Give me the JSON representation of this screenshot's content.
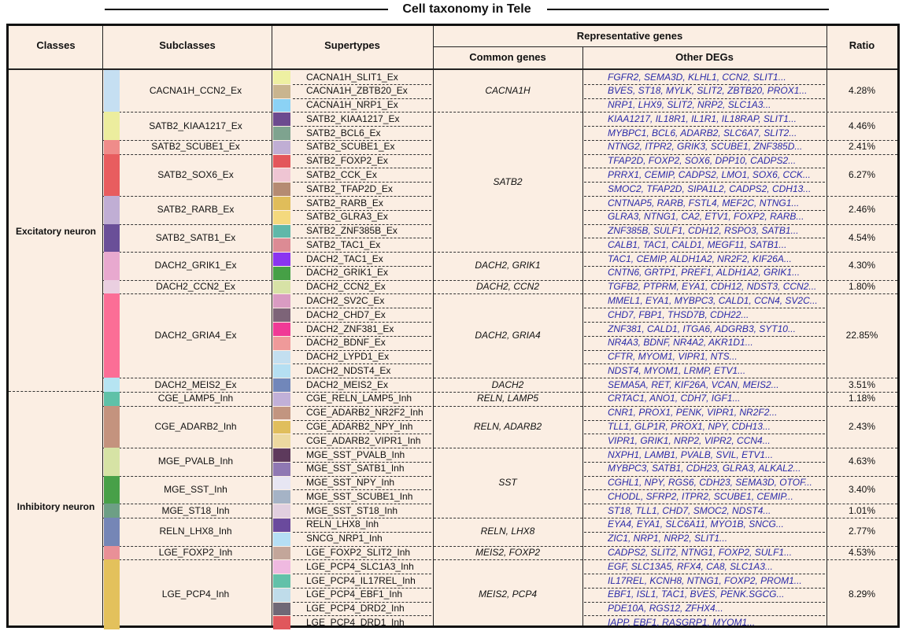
{
  "title": "Cell taxonomy in Tele",
  "headers": {
    "classes": "Classes",
    "subclasses": "Subclasses",
    "supertypes": "Supertypes",
    "rep_genes": "Representative genes",
    "common_genes": "Common genes",
    "other_degs": "Other DEGs",
    "ratio": "Ratio"
  },
  "classes": [
    {
      "name": "Excitatory neuron"
    },
    {
      "name": "Inhibitory neuron"
    }
  ],
  "subclasses": [
    {
      "name": "CACNA1H_CCN2_Ex",
      "color": "#c5dff2",
      "ratio": "4.28%"
    },
    {
      "name": "SATB2_KIAA1217_Ex",
      "color": "#eced9e",
      "ratio": "4.46%"
    },
    {
      "name": "SATB2_SCUBE1_Ex",
      "color": "#ef8c8a",
      "ratio": "2.41%"
    },
    {
      "name": "SATB2_SOX6_Ex",
      "color": "#e85d5f",
      "ratio": "6.27%"
    },
    {
      "name": "SATB2_RARB_Ex",
      "color": "#c0aed4",
      "ratio": "2.46%"
    },
    {
      "name": "SATB2_SATB1_Ex",
      "color": "#6a4f98",
      "ratio": "4.54%"
    },
    {
      "name": "DACH2_GRIK1_Ex",
      "color": "#e8a9cf",
      "ratio": "4.30%"
    },
    {
      "name": "DACH2_CCN2_Ex",
      "color": "#eacfe0",
      "ratio": "1.80%"
    },
    {
      "name": "DACH2_GRIA4_Ex",
      "color": "#fb6e96",
      "ratio": "22.85%"
    },
    {
      "name": "DACH2_MEIS2_Ex",
      "color": "#b6e4f2",
      "ratio": "3.51%"
    },
    {
      "name": "CGE_LAMP5_Inh",
      "color": "#5fc1a8",
      "ratio": "1.18%"
    },
    {
      "name": "CGE_ADARB2_Inh",
      "color": "#c4937e",
      "ratio": "2.43%"
    },
    {
      "name": "MGE_PVALB_Inh",
      "color": "#d6e3a5",
      "ratio": "4.63%"
    },
    {
      "name": "MGE_SST_Inh",
      "color": "#48a048",
      "ratio": "3.40%"
    },
    {
      "name": "MGE_ST18_Inh",
      "color": "#6d9f85",
      "ratio": "1.01%"
    },
    {
      "name": "RELN_LHX8_Inh",
      "color": "#7586b6",
      "ratio": "2.77%"
    },
    {
      "name": "LGE_FOXP2_Inh",
      "color": "#e99097",
      "ratio": "4.53%"
    },
    {
      "name": "LGE_PCP4_Inh",
      "color": "#e3c15c",
      "ratio": "8.29%"
    }
  ],
  "supertypes": [
    {
      "name": "CACNA1H_SLIT1_Ex",
      "color": "#eef0a2",
      "degs": "FGFR2, SEMA3D, KLHL1, CCN2, SLIT1..."
    },
    {
      "name": "CACNA1H_ZBTB20_Ex",
      "color": "#c9b58f",
      "degs": "BVES, ST18, MYLK, SLIT2, ZBTB20, PROX1..."
    },
    {
      "name": "CACNA1H_NRP1_Ex",
      "color": "#8bd2f5",
      "degs": "NRP1, LHX9, SLIT2, NRP2, SLC1A3..."
    },
    {
      "name": "SATB2_KIAA1217_Ex",
      "color": "#6c4a8f",
      "degs": "KIAA1217, IL18R1, IL1R1, IL18RAP, SLIT1..."
    },
    {
      "name": "SATB2_BCL6_Ex",
      "color": "#7ea38f",
      "degs": "MYBPC1, BCL6, ADARB2, SLC6A7, SLIT2..."
    },
    {
      "name": "SATB2_SCUBE1_Ex",
      "color": "#c0aed4",
      "degs": "NTNG2, ITPR2, GRIK3, SCUBE1, ZNF385D..."
    },
    {
      "name": "SATB2_FOXP2_Ex",
      "color": "#e3565b",
      "degs": "TFAP2D, FOXP2, SOX6, DPP10, CADPS2..."
    },
    {
      "name": "SATB2_CCK_Ex",
      "color": "#efc5d3",
      "degs": "PRRX1, CEMIP, CADPS2, LMO1, SOX6, CCK..."
    },
    {
      "name": "SATB2_TFAP2D_Ex",
      "color": "#b58b72",
      "degs": "SMOC2, TFAP2D, SIPA1L2, CADPS2, CDH13..."
    },
    {
      "name": "SATB2_RARB_Ex",
      "color": "#e0bd5a",
      "degs": "CNTNAP5, RARB, FSTL4, MEF2C, NTNG1..."
    },
    {
      "name": "SATB2_GLRA3_Ex",
      "color": "#f4d97e",
      "degs": "GLRA3, NTNG1, CA2, ETV1, FOXP2, RARB..."
    },
    {
      "name": "SATB2_ZNF385B_Ex",
      "color": "#5fb8a9",
      "degs": "ZNF385B, SULF1, CDH12, RSPO3, SATB1..."
    },
    {
      "name": "SATB2_TAC1_Ex",
      "color": "#dc8b94",
      "degs": "CALB1, TAC1, CALD1, MEGF11, SATB1..."
    },
    {
      "name": "DACH2_TAC1_Ex",
      "color": "#8a34f0",
      "degs": "TAC1, CEMIP, ALDH1A2, NR2F2, KIF26A..."
    },
    {
      "name": "DACH2_GRIK1_Ex",
      "color": "#46a046",
      "degs": "CNTN6, GRTP1, PREF1, ALDH1A2, GRIK1..."
    },
    {
      "name": "DACH2_CCN2_Ex",
      "color": "#d7e2a6",
      "degs": "TGFB2, PTPRM, EYA1, CDH12, NDST3, CCN2..."
    },
    {
      "name": "DACH2_SV2C_Ex",
      "color": "#d99bc2",
      "degs": "MMEL1, EYA1, MYBPC3, CALD1, CCN4, SV2C..."
    },
    {
      "name": "DACH2_CHD7_Ex",
      "color": "#7d6478",
      "degs": "CHD7, FBP1, THSD7B, CDH22..."
    },
    {
      "name": "DACH2_ZNF381_Ex",
      "color": "#f03a96",
      "degs": "ZNF381, CALD1, ITGA6, ADGRB3, SYT10..."
    },
    {
      "name": "DACH2_BDNF_Ex",
      "color": "#ef9a9a",
      "degs": "NR4A3, BDNF, NR4A2, AKR1D1..."
    },
    {
      "name": "DACH2_LYPD1_Ex",
      "color": "#c3dff0",
      "degs": "CFTR, MYOM1, VIPR1, NTS..."
    },
    {
      "name": "DACH2_NDST4_Ex",
      "color": "#b5dff2",
      "degs": "NDST4, MYOM1, LRMP, ETV1..."
    },
    {
      "name": "DACH2_MEIS2_Ex",
      "color": "#7187ba",
      "degs": "SEMA5A, RET, KIF26A, VCAN, MEIS2..."
    },
    {
      "name": "CGE_RELN_LAMP5_Inh",
      "color": "#c1b0d8",
      "degs": "CRTAC1, ANO1, CDH7, IGF1..."
    },
    {
      "name": "CGE_ADARB2_NR2F2_Inh",
      "color": "#c29580",
      "degs": "CNR1, PROX1, PENK, VIPR1, NR2F2..."
    },
    {
      "name": "CGE_ADARB2_NPY_Inh",
      "color": "#e0be5c",
      "degs": "TLL1, GLP1R, PROX1, NPY, CDH13..."
    },
    {
      "name": "CGE_ADARB2_VIPR1_Inh",
      "color": "#ecd9a0",
      "degs": "VIPR1, GRIK1, NRP2, VIPR2, CCN4..."
    },
    {
      "name": "MGE_SST_PVALB_Inh",
      "color": "#5d3a5c",
      "degs": "NXPH1, LAMB1, PVALB, SVIL, ETV1..."
    },
    {
      "name": "MGE_SST_SATB1_Inh",
      "color": "#8f78b3",
      "degs": "MYBPC3, SATB1, CDH23, GLRA3, ALKAL2..."
    },
    {
      "name": "MGE_SST_NPY_Inh",
      "color": "#e7e6f3",
      "degs": "CGHL1, NPY, RGS6, CDH23, SEMA3D, OTOF..."
    },
    {
      "name": "MGE_SST_SCUBE1_Inh",
      "color": "#a5b3c6",
      "degs": "CHODL, SFRP2, ITPR2, SCUBE1, CEMIP..."
    },
    {
      "name": "MGE_SST_ST18_Inh",
      "color": "#e1cfdf",
      "degs": "ST18, TLL1, CHD7, SMOC2, NDST4..."
    },
    {
      "name": "RELN_LHX8_Inh",
      "color": "#6a4a9d",
      "degs": "EYA4, EYA1, SLC6A11, MYO1B, SNCG..."
    },
    {
      "name": "SNCG_NRP1_Inh",
      "color": "#b5dff5",
      "degs": "ZIC1, NRP1, NRP2, SLIT1..."
    },
    {
      "name": "LGE_FOXP2_SLIT2_Inh",
      "color": "#c3a69a",
      "degs": "CADPS2, SLIT2, NTNG1, FOXP2, SULF1..."
    },
    {
      "name": "LGE_PCP4_SLC1A3_Inh",
      "color": "#efb9e0",
      "degs": "EGF, SLC13A5, RFX4, CA8, SLC1A3..."
    },
    {
      "name": "LGE_PCP4_IL17REL_Inh",
      "color": "#62c1a9",
      "degs": "IL17REL, KCNH8, NTNG1, FOXP2, PROM1..."
    },
    {
      "name": "LGE_PCP4_EBF1_Inh",
      "color": "#bfdcea",
      "degs": "EBF1, ISL1, TAC1, BVES, PENK.SGCG..."
    },
    {
      "name": "LGE_PCP4_DRD2_Inh",
      "color": "#6f6876",
      "degs": "PDE10A, RGS12, ZFHX4..."
    },
    {
      "name": "LGE_PCP4_DRD1_Inh",
      "color": "#e0575c",
      "degs": "IAPP, EBF1, RASGRP1, MYOM1..."
    }
  ],
  "common_genes": [
    "CACNA1H",
    "SATB2",
    "DACH2, GRIK1",
    "DACH2, CCN2",
    "DACH2, GRIA4",
    "DACH2",
    "RELN, LAMP5",
    "RELN, ADARB2",
    "SST",
    "RELN, LHX8",
    "MEIS2, FOXP2",
    "MEIS2, PCP4"
  ]
}
